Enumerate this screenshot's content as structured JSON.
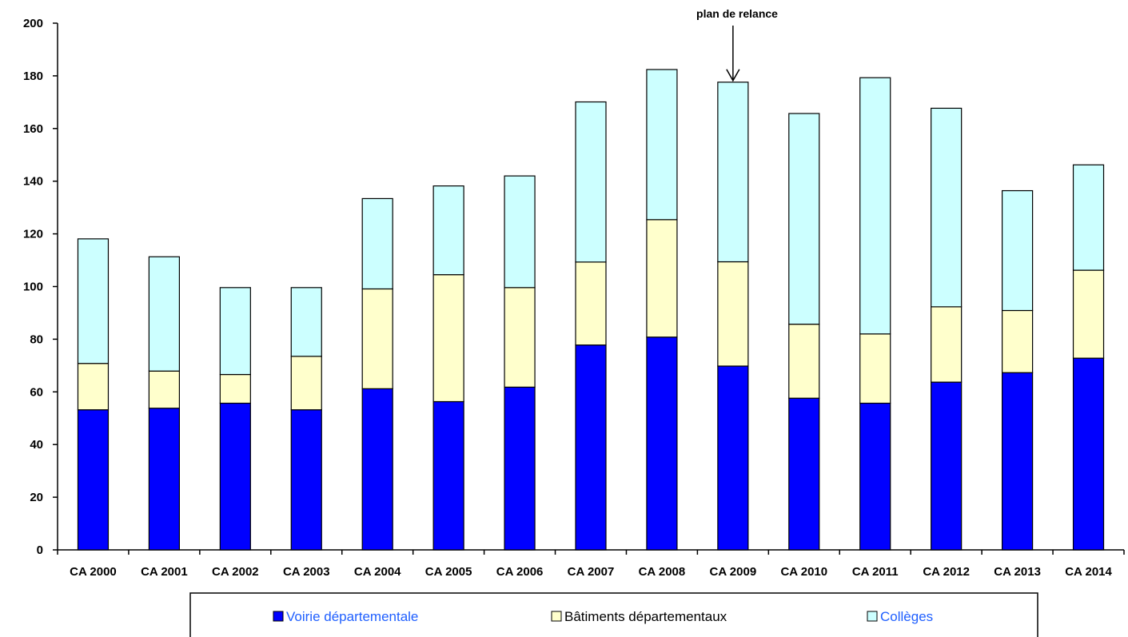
{
  "chart_data": {
    "type": "bar",
    "stacked": true,
    "categories": [
      "CA 2000",
      "CA 2001",
      "CA 2002",
      "CA 2003",
      "CA 2004",
      "CA 2005",
      "CA 2006",
      "CA 2007",
      "CA 2008",
      "CA 2009",
      "CA 2010",
      "CA 2011",
      "CA 2012",
      "CA 2013",
      "CA 2014"
    ],
    "series": [
      {
        "name": "Voirie départementale",
        "color": "#0000ff",
        "values": [
          53.2,
          53.8,
          55.7,
          53.2,
          61.2,
          56.3,
          61.8,
          77.8,
          80.8,
          69.8,
          57.6,
          55.7,
          63.7,
          67.3,
          72.8
        ]
      },
      {
        "name": "Bâtiments départementaux",
        "color": "#ffffcc",
        "values": [
          17.6,
          14.1,
          10.9,
          20.3,
          37.9,
          48.2,
          37.8,
          31.5,
          44.6,
          39.6,
          28.1,
          26.3,
          28.6,
          23.6,
          33.4
        ]
      },
      {
        "name": "Collèges",
        "color": "#ccffff",
        "values": [
          47.3,
          43.4,
          33.0,
          26.1,
          34.3,
          33.7,
          42.4,
          60.8,
          57.0,
          68.2,
          80.0,
          97.3,
          75.4,
          45.5,
          40.0
        ]
      }
    ],
    "ylim": [
      0,
      200
    ],
    "yticks": [
      "0",
      "20",
      "40",
      "60",
      "80",
      "100",
      "120",
      "140",
      "160",
      "180",
      "200"
    ],
    "annotation": {
      "text": "plan de relance",
      "category": "CA 2009"
    },
    "legend": {
      "position": "bottom",
      "label_colors": [
        "#1f5fff",
        "#000000",
        "#1f5fff"
      ]
    },
    "title": "",
    "xlabel": "",
    "ylabel": "",
    "grid": false
  }
}
